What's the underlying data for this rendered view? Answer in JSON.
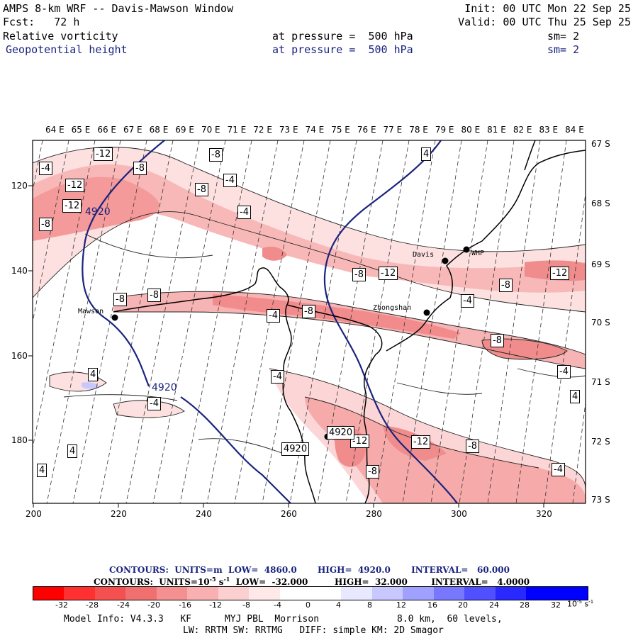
{
  "header": {
    "title": "AMPS 8-km WRF -- Davis-Mawson Window",
    "init": "Init: 00 UTC Mon 22 Sep 25",
    "forecast": "Fcst:   72 h",
    "valid": "Valid: 00 UTC Thu 25 Sep 25",
    "field1": {
      "name": "Relative vorticity",
      "pressure": "at pressure =  500 hPa",
      "smooth": "sm= 2"
    },
    "field2": {
      "name": "Geopotential height",
      "pressure": "at pressure =  500 hPa",
      "smooth": "sm= 2"
    }
  },
  "map": {
    "top_longitudes": [
      "64 E",
      "65 E",
      "66 E",
      "67 E",
      "68 E",
      "69 E",
      "70 E",
      "71 E",
      "72 E",
      "73 E",
      "74 E",
      "75 E",
      "76 E",
      "77 E",
      "78 E",
      "79 E",
      "80 E",
      "81 E",
      "82 E",
      "83 E",
      "84 E"
    ],
    "right_latitudes": [
      "67 S",
      "68 S",
      "69 S",
      "70 S",
      "71 S",
      "72 S",
      "73 S"
    ],
    "left_y_ticks": [
      "120",
      "140",
      "160",
      "180"
    ],
    "bottom_x_ticks": [
      "200",
      "220",
      "240",
      "260",
      "280",
      "300",
      "320"
    ],
    "stations": [
      {
        "name": "Davis"
      },
      {
        "name": "WHP"
      },
      {
        "name": "Zhongshan"
      },
      {
        "name": "Mawson"
      }
    ],
    "contour_labels": [
      "-4",
      "-12",
      "-8",
      "-12",
      "-12",
      "-8",
      "-8",
      "-8",
      "-4",
      "-4",
      "4",
      "-8",
      "-8",
      "-8",
      "-12",
      "-8",
      "-4",
      "-4",
      "-12",
      "-8",
      "-8",
      "-4",
      "4",
      "-4",
      "-4",
      "4",
      "-12",
      "-12",
      "-8",
      "-8",
      "4",
      "-4",
      "4",
      "4920",
      "4920",
      "-8",
      "-8",
      "-8",
      "4",
      "-8"
    ],
    "height_contour_labels": [
      "4920",
      "4920"
    ]
  },
  "legend": {
    "contours1": {
      "label": "CONTOURS:  UNITS=m",
      "low": "LOW=  4860.0",
      "high": "HIGH=  4920.0",
      "interval": "INTERVAL=   60.000"
    },
    "contours2": {
      "label": "CONTOURS:  UNITS=10",
      "exp": "-5",
      "unit_tail": " s",
      "unit_exp": "-1",
      "low": "LOW=  -32.000",
      "high": "HIGH=  32.000",
      "interval": "INTERVAL=   4.0000"
    },
    "colorbar_values": [
      "-32",
      "-28",
      "-24",
      "-20",
      "-16",
      "-12",
      "-8",
      "-4",
      "0",
      "4",
      "8",
      "12",
      "16",
      "20",
      "24",
      "28",
      "32"
    ],
    "colorbar_unit": "10",
    "colorbar_unit_exp": "-5",
    "colorbar_unit_tail": " s",
    "colorbar_unit_exp2": "-1",
    "colors": [
      "#ff0000",
      "#ff3030",
      "#f45050",
      "#f07070",
      "#f49090",
      "#f8b0b0",
      "#fcd0d0",
      "#ffe8e8",
      "#ffffff",
      "#ffffff",
      "#e8e8ff",
      "#c8c8ff",
      "#a0a0ff",
      "#7878ff",
      "#5050ff",
      "#2828ff",
      "#0000ff"
    ]
  },
  "footer": {
    "line1_left": "Model Info: V4.3.3   KF      MYJ PBL  Morrison",
    "line1_right": "8.0 km,  60 levels,",
    "line2": "LW: RRTM SW: RRTMG   DIFF: simple KM: 2D Smagor"
  }
}
